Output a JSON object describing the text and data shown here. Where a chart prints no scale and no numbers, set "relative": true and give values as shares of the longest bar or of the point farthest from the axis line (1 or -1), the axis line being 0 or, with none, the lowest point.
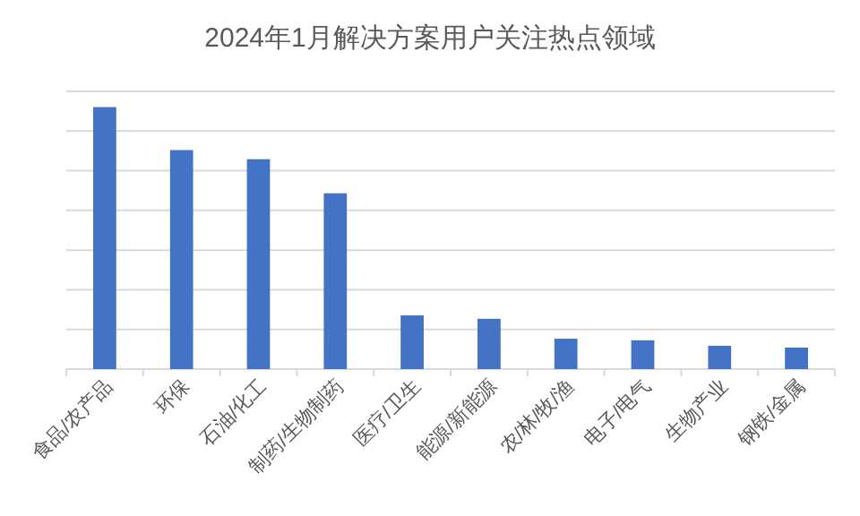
{
  "chart_data": {
    "type": "bar",
    "title": "2024年1月解决方案用户关注热点领域",
    "categories": [
      "食品/农产品",
      "环保",
      "石油/化工",
      "制药/生物制药",
      "医疗/卫生",
      "能源/新能源",
      "农/林/牧/渔",
      "电子/电气",
      "生物产业",
      "钢铁/金属"
    ],
    "values": [
      1,
      0.836,
      0.801,
      0.671,
      0.205,
      0.192,
      0.116,
      0.11,
      0.089,
      0.082
    ],
    "color": "#4472c4",
    "relative": true,
    "grid": "y"
  }
}
